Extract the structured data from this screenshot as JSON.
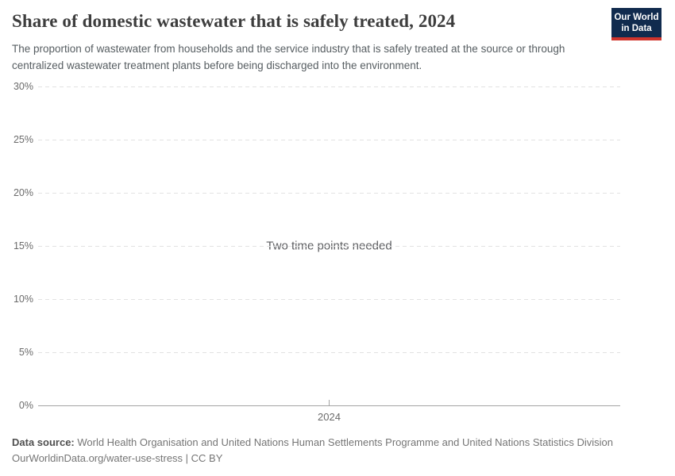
{
  "header": {
    "title": "Share of domestic wastewater that is safely treated, 2024",
    "subtitle": "The proportion of wastewater from households and the service industry that is safely treated at the source or through centralized wastewater treatment plants before being discharged into the environment.",
    "logo": {
      "line1": "Our World",
      "line2": "in Data",
      "bg_color": "#112b4e",
      "accent_color": "#d0342c"
    }
  },
  "chart_data": {
    "type": "line",
    "title": "Share of domestic wastewater that is safely treated, 2024",
    "series": [],
    "empty_message": "Two time points needed",
    "x_ticks": [
      "2024"
    ],
    "y_ticks": [
      "0%",
      "5%",
      "10%",
      "15%",
      "20%",
      "25%",
      "30%"
    ],
    "ylim": [
      0,
      30
    ],
    "xlabel": "",
    "ylabel": "",
    "grid": "horizontal-dashed",
    "axis_color": "#a3a3a3",
    "gridline_color": "#e2e2e2"
  },
  "footer": {
    "data_source_label": "Data source:",
    "data_source_text": " World Health Organisation and United Nations Human Settlements Programme and United Nations Statistics Division",
    "citation": "OurWorldinData.org/water-use-stress | CC BY"
  }
}
